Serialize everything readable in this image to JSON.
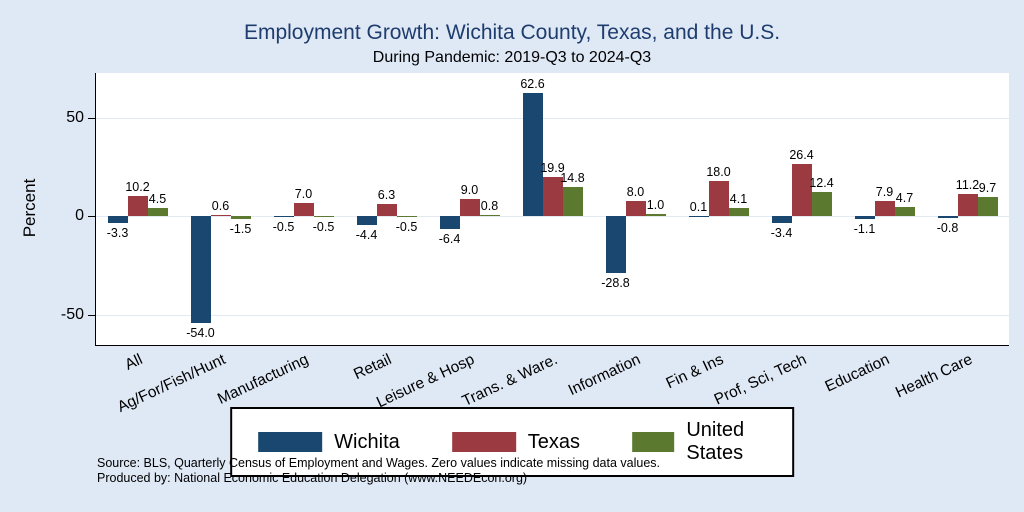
{
  "title": "Employment Growth: Wichita County, Texas, and the U.S.",
  "subtitle": "During Pandemic: 2019-Q3 to 2024-Q3",
  "source_line1": "Source: BLS, Quarterly Census of Employment and Wages. Zero values indicate missing data values.",
  "source_line2": "Produced by: National Economic Education Delegation (www.NEEDEcon.org)",
  "colors": {
    "wichita": "#1a476f",
    "texas": "#9c3a42",
    "us": "#5b7a2f",
    "title": "#1e3d6e",
    "background": "#dfe8f5"
  },
  "chart_data": {
    "type": "bar",
    "title": "Employment Growth: Wichita County, Texas, and the U.S.",
    "subtitle": "During Pandemic: 2019-Q3 to 2024-Q3",
    "ylabel": "Percent",
    "xlabel": "",
    "ylim": [
      -65,
      72.5
    ],
    "yticks": [
      50,
      0,
      -50
    ],
    "grid": true,
    "legend_position": "bottom",
    "categories": [
      "All",
      "Ag/For/Fish/Hunt",
      "Manufacturing",
      "Retail",
      "Leisure & Hosp",
      "Trans. & Ware.",
      "Information",
      "Fin & Ins",
      "Prof, Sci, Tech",
      "Education",
      "Health Care"
    ],
    "series": [
      {
        "name": "Wichita",
        "color_key": "wichita",
        "values": [
          -3.3,
          -54.0,
          -0.5,
          -4.4,
          -6.4,
          62.6,
          -28.8,
          0.1,
          -3.4,
          -1.1,
          -0.8
        ]
      },
      {
        "name": "Texas",
        "color_key": "texas",
        "values": [
          10.2,
          0.6,
          7.0,
          6.3,
          9.0,
          19.9,
          8.0,
          18.0,
          26.4,
          7.9,
          11.2
        ]
      },
      {
        "name": "United States",
        "color_key": "us",
        "values": [
          4.5,
          -1.5,
          -0.5,
          -0.5,
          0.8,
          14.8,
          1.0,
          4.1,
          12.4,
          4.7,
          9.7
        ]
      }
    ]
  }
}
